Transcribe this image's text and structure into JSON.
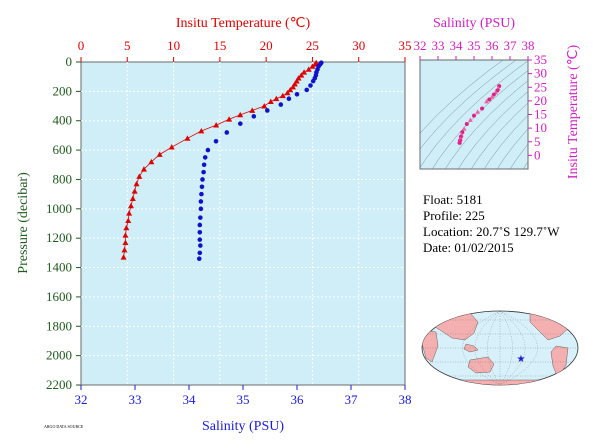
{
  "chart_data": [
    {
      "type": "scatter",
      "top_axis": {
        "label": "Insitu Temperature (℃)",
        "range": [
          0,
          35
        ],
        "ticks": [
          0,
          5,
          10,
          15,
          20,
          25,
          30,
          35
        ],
        "color": "#dd0000"
      },
      "bottom_axis": {
        "label": "Salinity (PSU)",
        "range": [
          32,
          38
        ],
        "ticks": [
          32,
          33,
          34,
          35,
          36,
          37,
          38
        ],
        "color": "#1a1adb"
      },
      "y_axis": {
        "label": "Pressure (decibar)",
        "range": [
          0,
          2200
        ],
        "inverted": true,
        "ticks": [
          0,
          200,
          400,
          600,
          800,
          1000,
          1200,
          1400,
          1600,
          1800,
          2000,
          2200
        ],
        "color": "#1f5a1f"
      },
      "background": "#d0eef8",
      "series": [
        {
          "axis": "temperature",
          "marker": "triangle",
          "color": "#dd0000",
          "connected": true,
          "points": [
            [
              25.4,
              5
            ],
            [
              25.3,
              15
            ],
            [
              25.0,
              30
            ],
            [
              24.6,
              50
            ],
            [
              24.1,
              70
            ],
            [
              23.8,
              90
            ],
            [
              23.5,
              110
            ],
            [
              23.3,
              130
            ],
            [
              23.1,
              150
            ],
            [
              22.9,
              170
            ],
            [
              22.6,
              190
            ],
            [
              22.3,
              210
            ],
            [
              21.8,
              230
            ],
            [
              21.1,
              250
            ],
            [
              20.5,
              270
            ],
            [
              19.8,
              300
            ],
            [
              18.5,
              330
            ],
            [
              17.2,
              360
            ],
            [
              16.0,
              390
            ],
            [
              14.6,
              430
            ],
            [
              13.0,
              470
            ],
            [
              11.5,
              520
            ],
            [
              9.8,
              580
            ],
            [
              8.5,
              630
            ],
            [
              7.6,
              680
            ],
            [
              6.8,
              730
            ],
            [
              6.3,
              780
            ],
            [
              6.0,
              830
            ],
            [
              5.8,
              880
            ],
            [
              5.6,
              930
            ],
            [
              5.4,
              980
            ],
            [
              5.2,
              1030
            ],
            [
              5.1,
              1080
            ],
            [
              4.9,
              1130
            ],
            [
              4.8,
              1180
            ],
            [
              4.8,
              1230
            ],
            [
              4.7,
              1280
            ],
            [
              4.6,
              1330
            ]
          ]
        },
        {
          "axis": "salinity",
          "marker": "circle",
          "color": "#1111cc",
          "connected": false,
          "points": [
            [
              36.45,
              5
            ],
            [
              36.43,
              15
            ],
            [
              36.4,
              30
            ],
            [
              36.38,
              50
            ],
            [
              36.36,
              70
            ],
            [
              36.35,
              90
            ],
            [
              36.33,
              110
            ],
            [
              36.3,
              130
            ],
            [
              36.25,
              160
            ],
            [
              36.18,
              190
            ],
            [
              36.0,
              220
            ],
            [
              35.85,
              250
            ],
            [
              35.7,
              290
            ],
            [
              35.45,
              330
            ],
            [
              35.2,
              370
            ],
            [
              34.95,
              420
            ],
            [
              34.7,
              480
            ],
            [
              34.5,
              540
            ],
            [
              34.35,
              600
            ],
            [
              34.3,
              650
            ],
            [
              34.28,
              700
            ],
            [
              34.27,
              750
            ],
            [
              34.25,
              800
            ],
            [
              34.24,
              850
            ],
            [
              34.23,
              900
            ],
            [
              34.22,
              950
            ],
            [
              34.22,
              1000
            ],
            [
              34.21,
              1060
            ],
            [
              34.2,
              1110
            ],
            [
              34.2,
              1160
            ],
            [
              34.2,
              1210
            ],
            [
              34.21,
              1250
            ],
            [
              34.2,
              1300
            ],
            [
              34.19,
              1340
            ]
          ]
        }
      ]
    },
    {
      "type": "scatter",
      "top_axis": {
        "label": "Salinity (PSU)",
        "range": [
          32,
          38
        ],
        "ticks": [
          32,
          33,
          34,
          35,
          36,
          37,
          38
        ],
        "color": "#d020c0"
      },
      "y_axis": {
        "label": "Insitu Temperature (℃)",
        "range": [
          -5,
          35
        ],
        "ticks": [
          0,
          5,
          10,
          15,
          20,
          25,
          30,
          35
        ],
        "color": "#d020c0"
      },
      "background": "#d0eef8",
      "series": [
        {
          "marker": "circle-triangle",
          "color": "#e0208a",
          "points": [
            [
              36.4,
              25.4
            ],
            [
              36.35,
              24.6
            ],
            [
              36.3,
              23.8
            ],
            [
              36.2,
              23.1
            ],
            [
              36.1,
              22.3
            ],
            [
              36.0,
              21.5
            ],
            [
              35.85,
              20.5
            ],
            [
              35.7,
              19.8
            ],
            [
              35.45,
              17.2
            ],
            [
              35.2,
              16.0
            ],
            [
              35.0,
              14.6
            ],
            [
              34.8,
              13.0
            ],
            [
              34.6,
              11.5
            ],
            [
              34.45,
              9.8
            ],
            [
              34.35,
              8.5
            ],
            [
              34.3,
              7.6
            ],
            [
              34.27,
              6.8
            ],
            [
              34.25,
              6.0
            ],
            [
              34.22,
              5.4
            ],
            [
              34.2,
              5.0
            ],
            [
              34.2,
              4.6
            ]
          ]
        }
      ]
    }
  ],
  "info": {
    "float": "Float:  5181",
    "profile": "Profile:  225",
    "location": "Location:  20.7˚S  129.7˚W",
    "date": "Date:  01/02/2015"
  },
  "footer_note": "ARGO DATA SOURCE",
  "map": {
    "ocean_color": "#d8f0fa",
    "land_color": "#f4b0b0",
    "marker_color": "#1a1adb",
    "marker": "star"
  }
}
